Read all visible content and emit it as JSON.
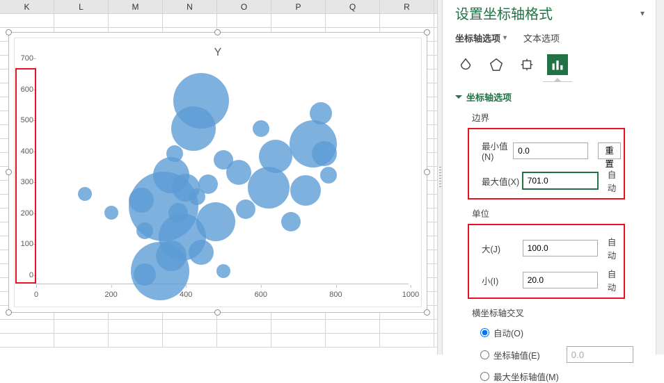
{
  "columns": [
    "K",
    "L",
    "M",
    "N",
    "O",
    "P",
    "Q",
    "R"
  ],
  "chart": {
    "title": "Y",
    "bubble_color": "#5b9bd5",
    "xlim": [
      0,
      1000
    ],
    "xtick_step": 200,
    "ylim": [
      0,
      700
    ],
    "ytick_step": 100,
    "xticks": [
      0,
      200,
      400,
      600,
      800,
      1000
    ],
    "yticks": [
      0,
      100,
      200,
      300,
      400,
      500,
      600,
      700
    ],
    "bubbles": [
      {
        "x": 130,
        "y": 290,
        "r": 10
      },
      {
        "x": 200,
        "y": 230,
        "r": 10
      },
      {
        "x": 280,
        "y": 270,
        "r": 18
      },
      {
        "x": 340,
        "y": 250,
        "r": 50
      },
      {
        "x": 290,
        "y": 170,
        "r": 12
      },
      {
        "x": 290,
        "y": 30,
        "r": 16
      },
      {
        "x": 330,
        "y": 40,
        "r": 42
      },
      {
        "x": 360,
        "y": 90,
        "r": 22
      },
      {
        "x": 360,
        "y": 350,
        "r": 26
      },
      {
        "x": 370,
        "y": 420,
        "r": 12
      },
      {
        "x": 380,
        "y": 230,
        "r": 14
      },
      {
        "x": 400,
        "y": 310,
        "r": 20
      },
      {
        "x": 390,
        "y": 150,
        "r": 34
      },
      {
        "x": 440,
        "y": 590,
        "r": 40
      },
      {
        "x": 420,
        "y": 500,
        "r": 32
      },
      {
        "x": 430,
        "y": 280,
        "r": 12
      },
      {
        "x": 440,
        "y": 100,
        "r": 18
      },
      {
        "x": 460,
        "y": 320,
        "r": 14
      },
      {
        "x": 480,
        "y": 200,
        "r": 28
      },
      {
        "x": 500,
        "y": 40,
        "r": 10
      },
      {
        "x": 500,
        "y": 400,
        "r": 14
      },
      {
        "x": 540,
        "y": 360,
        "r": 18
      },
      {
        "x": 560,
        "y": 240,
        "r": 14
      },
      {
        "x": 600,
        "y": 500,
        "r": 12
      },
      {
        "x": 620,
        "y": 310,
        "r": 30
      },
      {
        "x": 640,
        "y": 410,
        "r": 24
      },
      {
        "x": 680,
        "y": 200,
        "r": 14
      },
      {
        "x": 720,
        "y": 300,
        "r": 22
      },
      {
        "x": 740,
        "y": 450,
        "r": 34
      },
      {
        "x": 760,
        "y": 550,
        "r": 16
      },
      {
        "x": 770,
        "y": 420,
        "r": 18
      },
      {
        "x": 780,
        "y": 350,
        "r": 12
      }
    ]
  },
  "panel": {
    "title": "设置坐标轴格式",
    "tab_axis": "坐标轴选项",
    "tab_text": "文本选项",
    "section_axis_options": "坐标轴选项",
    "group_bounds": "边界",
    "min_label": "最小值(N)",
    "min_value": "0.0",
    "min_suffix_btn": "重置",
    "max_label": "最大值(X)",
    "max_value": "701.0",
    "max_suffix": "自动",
    "group_units": "单位",
    "major_label": "大(J)",
    "major_value": "100.0",
    "major_suffix": "自动",
    "minor_label": "小(I)",
    "minor_value": "20.0",
    "minor_suffix": "自动",
    "group_cross": "横坐标轴交叉",
    "radio_auto": "自动(O)",
    "radio_value": "坐标轴值(E)",
    "radio_value_input": "0.0",
    "radio_max": "最大坐标轴值(M)"
  }
}
